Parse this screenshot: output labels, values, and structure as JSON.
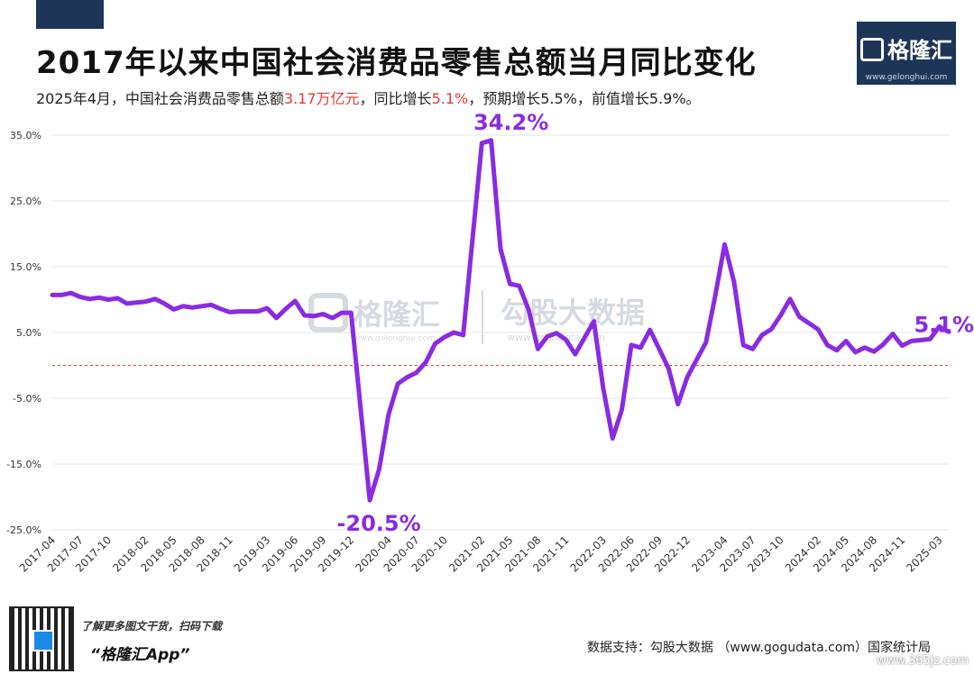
{
  "header": {
    "title": "2017年以来中国社会消费品零售总额当月同比变化",
    "subtitle_parts": {
      "part1": "2025年4月，中国社会消费品零售总额",
      "value": "3.17万亿元",
      "part2": "，同比增长",
      "yoy": "5.1%",
      "part3": "，预期增长5.5%，前值增长5.9%。"
    }
  },
  "brand": {
    "name": "格隆汇",
    "url": "www.gelonghui.com"
  },
  "footer": {
    "qr_line1": "了解更多图文干货，扫码下载",
    "qr_line2": "“格隆汇App”",
    "source": "数据支持：勾股大数据 （www.gogudata.com）国家统计局",
    "site": "www.365jz.com"
  },
  "watermark": {
    "brand": "格隆汇",
    "brand_url": "www.gelonghui.com",
    "data": "勾股大数据",
    "data_url": "www.gogudata.com"
  },
  "colors": {
    "line": "#8a2be2",
    "highlight": "#e53935",
    "zero_line": "#e53935",
    "grid": "#e6e6e6",
    "brand": "#1d3557"
  },
  "chart_data": {
    "type": "line",
    "title": "2017年以来中国社会消费品零售总额当月同比变化",
    "xlabel": "",
    "ylabel": "",
    "ylim": [
      -25,
      35
    ],
    "y_ticks": [
      "35.0%",
      "25.0%",
      "15.0%",
      "5.0%",
      "-5.0%",
      "-15.0%",
      "-25.0%"
    ],
    "y_tick_values": [
      35,
      25,
      15,
      5,
      -5,
      -15,
      -25
    ],
    "x_tick_labels": [
      "2017-04",
      "2017-07",
      "2017-10",
      "2018-02",
      "2018-05",
      "2018-08",
      "2018-11",
      "2019-03",
      "2019-06",
      "2019-09",
      "2019-12",
      "2020-04",
      "2020-07",
      "2020-10",
      "2021-02",
      "2021-05",
      "2021-08",
      "2021-11",
      "2022-03",
      "2022-06",
      "2022-09",
      "2022-12",
      "2023-04",
      "2023-07",
      "2023-10",
      "2024-02",
      "2024-05",
      "2024-08",
      "2024-11",
      "2025-03"
    ],
    "grid": true,
    "zero_reference_line": true,
    "series": [
      {
        "x": [
          "2017-04",
          "2017-05",
          "2017-06",
          "2017-07",
          "2017-08",
          "2017-09",
          "2017-10",
          "2017-11",
          "2017-12",
          "2018-02",
          "2018-03",
          "2018-04",
          "2018-05",
          "2018-06",
          "2018-07",
          "2018-08",
          "2018-09",
          "2018-10",
          "2018-11",
          "2018-12",
          "2019-02",
          "2019-03",
          "2019-04",
          "2019-05",
          "2019-06",
          "2019-07",
          "2019-08",
          "2019-09",
          "2019-10",
          "2019-11",
          "2019-12",
          "2020-02",
          "2020-03",
          "2020-04",
          "2020-05",
          "2020-06",
          "2020-07",
          "2020-08",
          "2020-09",
          "2020-10",
          "2020-11",
          "2020-12",
          "2021-02",
          "2021-03",
          "2021-04",
          "2021-05",
          "2021-06",
          "2021-07",
          "2021-08",
          "2021-09",
          "2021-10",
          "2021-11",
          "2021-12",
          "2022-02",
          "2022-03",
          "2022-04",
          "2022-05",
          "2022-06",
          "2022-07",
          "2022-08",
          "2022-09",
          "2022-10",
          "2022-11",
          "2022-12",
          "2023-02",
          "2023-03",
          "2023-04",
          "2023-05",
          "2023-06",
          "2023-07",
          "2023-08",
          "2023-09",
          "2023-10",
          "2023-11",
          "2023-12",
          "2024-02",
          "2024-03",
          "2024-04",
          "2024-05",
          "2024-06",
          "2024-07",
          "2024-08",
          "2024-09",
          "2024-10",
          "2024-11",
          "2024-12",
          "2025-02",
          "2025-03",
          "2025-04"
        ],
        "values": [
          10.7,
          10.7,
          11.0,
          10.4,
          10.1,
          10.3,
          10.0,
          10.2,
          9.4,
          9.7,
          10.1,
          9.4,
          8.5,
          9.0,
          8.8,
          9.0,
          9.2,
          8.6,
          8.1,
          8.2,
          8.2,
          8.7,
          7.2,
          8.6,
          9.8,
          7.6,
          7.5,
          7.8,
          7.2,
          8.0,
          8.0,
          -20.5,
          -15.8,
          -7.5,
          -2.8,
          -1.8,
          -1.1,
          0.5,
          3.3,
          4.3,
          5.0,
          4.6,
          33.8,
          34.2,
          17.7,
          12.4,
          12.1,
          8.5,
          2.5,
          4.4,
          4.9,
          3.9,
          1.7,
          6.7,
          -3.5,
          -11.1,
          -6.7,
          3.1,
          2.7,
          5.4,
          2.5,
          -0.5,
          -5.9,
          -1.8,
          3.5,
          10.6,
          18.4,
          12.7,
          3.1,
          2.5,
          4.6,
          5.5,
          7.6,
          10.1,
          7.4,
          5.5,
          3.1,
          2.3,
          3.7,
          2.0,
          2.7,
          2.1,
          3.2,
          4.8,
          3.0,
          3.7,
          4.0,
          5.9,
          5.1
        ]
      }
    ],
    "annotations": [
      {
        "label": "34.2%",
        "x": "2021-03",
        "y": 34.2
      },
      {
        "label": "-20.5%",
        "x": "2020-02",
        "y": -20.5
      },
      {
        "label": "5.1%",
        "x": "2025-04",
        "y": 5.1
      }
    ]
  }
}
